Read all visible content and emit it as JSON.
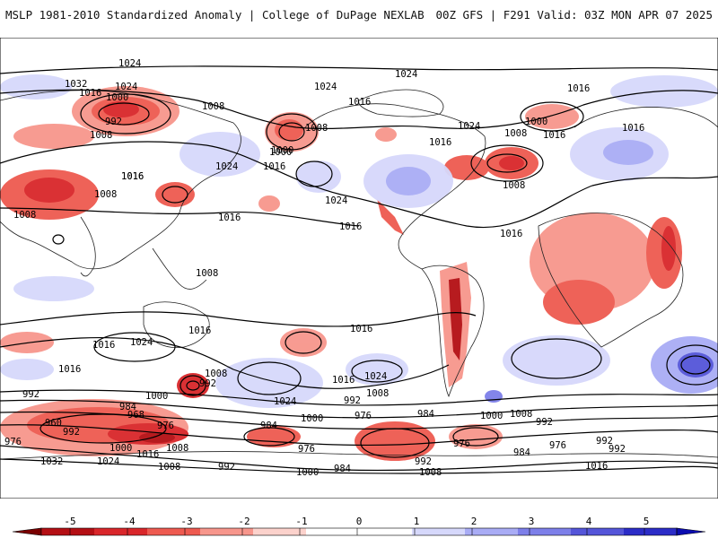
{
  "header": {
    "left_title": "MSLP 1981-2010 Standardized Anomaly | College of DuPage NEXLAB",
    "right_title": "00Z GFS | F291 Valid: 03Z MON APR 07 2025"
  },
  "colorbar": {
    "ticks": [
      "-5",
      "-4",
      "-3",
      "-2",
      "-1",
      "0",
      "1",
      "2",
      "3",
      "4",
      "5"
    ],
    "colors": [
      "#7a0000",
      "#b40f14",
      "#d9262a",
      "#ee5a50",
      "#f7968c",
      "#fcd2cc",
      "#ffffff",
      "#ffffff",
      "#d6d8fb",
      "#a9acf5",
      "#7d7fe9",
      "#5455d9",
      "#2b2cc7",
      "#0b0cb0"
    ]
  },
  "map": {
    "contour_labels": [
      "1024",
      "1032",
      "1016",
      "1000",
      "992",
      "1008",
      "1024",
      "1008",
      "1016",
      "1024",
      "1016",
      "1000",
      "1024",
      "1016",
      "1024",
      "1000",
      "1008",
      "1016",
      "1016",
      "1024",
      "1016",
      "1008",
      "1016",
      "1000",
      "1008",
      "1008",
      "1016",
      "1008",
      "1016",
      "1024",
      "1016",
      "1008",
      "1016",
      "1024",
      "1016",
      "1016",
      "1016",
      "1008",
      "992",
      "1024",
      "1016",
      "1024",
      "1000",
      "1008",
      "992",
      "984",
      "968",
      "960",
      "992",
      "976",
      "976",
      "1000",
      "1016",
      "1008",
      "984",
      "1000",
      "976",
      "976",
      "992",
      "984",
      "1000",
      "1008",
      "1032",
      "1024",
      "1008",
      "992",
      "1000",
      "984",
      "992",
      "1008",
      "976",
      "984",
      "992",
      "976",
      "992",
      "1016",
      "992",
      "1016"
    ],
    "colors": {
      "negative_strong": "#d62a2c",
      "negative_weak": "#f7968c",
      "positive_weak": "#d6d8fb",
      "positive_strong": "#6d6fe3",
      "contour": "#000000",
      "coastline": "#222222"
    }
  }
}
